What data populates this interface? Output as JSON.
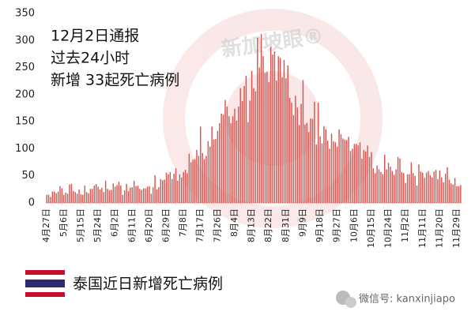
{
  "chart_data": {
    "type": "bar",
    "annotation": [
      "12月2日通报",
      "过去24小时",
      "新增 33起死亡病例"
    ],
    "watermark": "新加坡眼®",
    "legend_label": "泰国近日新增死亡病例",
    "footer": "微信号: kanxinjiapo",
    "color": "#d9534f",
    "ylim": [
      0,
      350
    ],
    "yticks": [
      0,
      50,
      100,
      150,
      200,
      250,
      300,
      350
    ],
    "categories": [
      "4月27日",
      null,
      null,
      null,
      null,
      null,
      null,
      null,
      null,
      "5月6日",
      null,
      null,
      null,
      null,
      null,
      null,
      null,
      null,
      "5月15日",
      null,
      null,
      null,
      null,
      null,
      null,
      null,
      null,
      "5月24日",
      null,
      null,
      null,
      null,
      null,
      null,
      null,
      null,
      "6月2日",
      null,
      null,
      null,
      null,
      null,
      null,
      null,
      null,
      "6月11日",
      null,
      null,
      null,
      null,
      null,
      null,
      null,
      null,
      "6月20日",
      null,
      null,
      null,
      null,
      null,
      null,
      null,
      null,
      "6月29日",
      null,
      null,
      null,
      null,
      null,
      null,
      null,
      null,
      "7月8日",
      null,
      null,
      null,
      null,
      null,
      null,
      null,
      null,
      "7月17日",
      null,
      null,
      null,
      null,
      null,
      null,
      null,
      null,
      "7月26日",
      null,
      null,
      null,
      null,
      null,
      null,
      null,
      null,
      "8月4日",
      null,
      null,
      null,
      null,
      null,
      null,
      null,
      null,
      "8月13日",
      null,
      null,
      null,
      null,
      null,
      null,
      null,
      null,
      "8月22日",
      null,
      null,
      null,
      null,
      null,
      null,
      null,
      null,
      "8月31日",
      null,
      null,
      null,
      null,
      null,
      null,
      null,
      null,
      "9月9日",
      null,
      null,
      null,
      null,
      null,
      null,
      null,
      null,
      "9月18日",
      null,
      null,
      null,
      null,
      null,
      null,
      null,
      null,
      "9月27日",
      null,
      null,
      null,
      null,
      null,
      null,
      null,
      null,
      "10月6日",
      null,
      null,
      null,
      null,
      null,
      null,
      null,
      null,
      "10月15日",
      null,
      null,
      null,
      null,
      null,
      null,
      null,
      null,
      "10月24日",
      null,
      null,
      null,
      null,
      null,
      null,
      null,
      null,
      "11月2日",
      null,
      null,
      null,
      null,
      null,
      null,
      null,
      null,
      "11月11日",
      null,
      null,
      null,
      null,
      null,
      null,
      null,
      null,
      "11月20日",
      null,
      null,
      null,
      null,
      null,
      null,
      null,
      null,
      "11月29日",
      null,
      null
    ],
    "values": [
      15,
      15,
      11,
      21,
      21,
      18,
      21,
      31,
      27,
      15,
      19,
      17,
      34,
      35,
      22,
      20,
      17,
      25,
      16,
      15,
      32,
      20,
      18,
      26,
      26,
      32,
      35,
      30,
      25,
      28,
      20,
      41,
      26,
      23,
      24,
      36,
      30,
      33,
      39,
      32,
      15,
      23,
      35,
      22,
      28,
      29,
      41,
      31,
      32,
      26,
      24,
      27,
      27,
      30,
      31,
      17,
      29,
      51,
      25,
      29,
      44,
      42,
      43,
      56,
      53,
      57,
      44,
      54,
      64,
      41,
      53,
      47,
      57,
      61,
      55,
      91,
      75,
      80,
      81,
      98,
      87,
      141,
      92,
      81,
      87,
      114,
      104,
      141,
      117,
      118,
      133,
      147,
      165,
      163,
      190,
      178,
      160,
      147,
      160,
      174,
      152,
      178,
      212,
      188,
      216,
      235,
      149,
      189,
      244,
      212,
      206,
      305,
      250,
      312,
      271,
      240,
      242,
      223,
      288,
      274,
      280,
      226,
      271,
      268,
      232,
      264,
      230,
      254,
      194,
      185,
      162,
      198,
      176,
      144,
      183,
      227,
      145,
      148,
      131,
      156,
      155,
      187,
      108,
      185,
      123,
      110,
      142,
      136,
      115,
      100,
      128,
      114,
      112,
      104,
      136,
      127,
      119,
      117,
      116,
      122,
      96,
      100,
      109,
      109,
      106,
      112,
      82,
      98,
      95,
      106,
      85,
      94,
      64,
      55,
      69,
      62,
      57,
      53,
      89,
      62,
      74,
      67,
      59,
      52,
      62,
      85,
      82,
      57,
      55,
      37,
      53,
      53,
      75,
      55,
      50,
      32,
      71,
      58,
      56,
      46,
      56,
      59,
      51,
      47,
      58,
      61,
      44,
      60,
      47,
      38,
      54,
      66,
      43,
      36,
      34,
      46,
      31,
      31,
      33
    ]
  }
}
